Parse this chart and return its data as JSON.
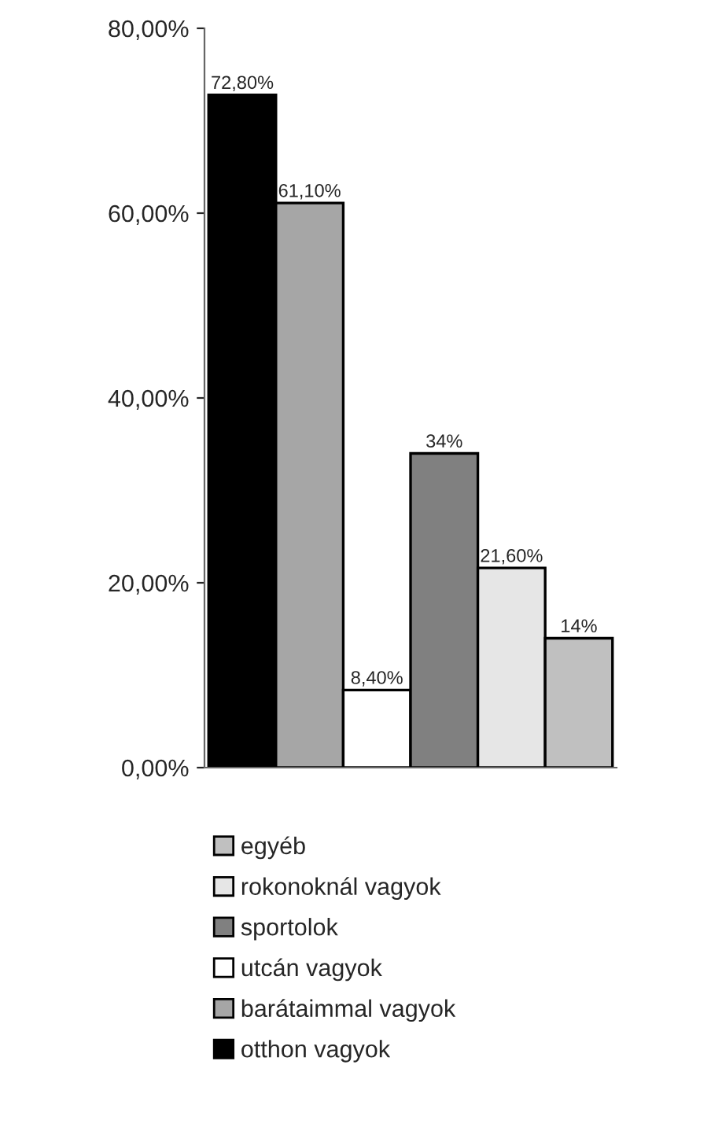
{
  "chart_data": {
    "type": "bar",
    "categories": [
      null
    ],
    "series": [
      {
        "name": "otthon vagyok",
        "color": "#000000",
        "values": [
          72.8
        ],
        "value_labels": [
          "72,80%"
        ]
      },
      {
        "name": "barátaimmal vagyok",
        "color": "#a6a6a6",
        "values": [
          61.1
        ],
        "value_labels": [
          "61,10%"
        ]
      },
      {
        "name": "utcán vagyok",
        "color": "#ffffff",
        "values": [
          8.4
        ],
        "value_labels": [
          "8,40%"
        ]
      },
      {
        "name": "sportolok",
        "color": "#808080",
        "values": [
          34
        ],
        "value_labels": [
          "34%"
        ]
      },
      {
        "name": "rokonoknál vagyok",
        "color": "#e6e6e6",
        "values": [
          21.6
        ],
        "value_labels": [
          "21,60%"
        ]
      },
      {
        "name": "egyéb",
        "color": "#c0c0c0",
        "values": [
          14
        ],
        "value_labels": [
          "14%"
        ]
      }
    ],
    "ylim": [
      0,
      80
    ],
    "yticks": [
      {
        "value": 0,
        "label": "0,00%"
      },
      {
        "value": 20,
        "label": "20,00%"
      },
      {
        "value": 40,
        "label": "40,00%"
      },
      {
        "value": 60,
        "label": "60,00%"
      },
      {
        "value": 80,
        "label": "80,00%"
      }
    ],
    "grid": false,
    "legend": "bottom"
  }
}
